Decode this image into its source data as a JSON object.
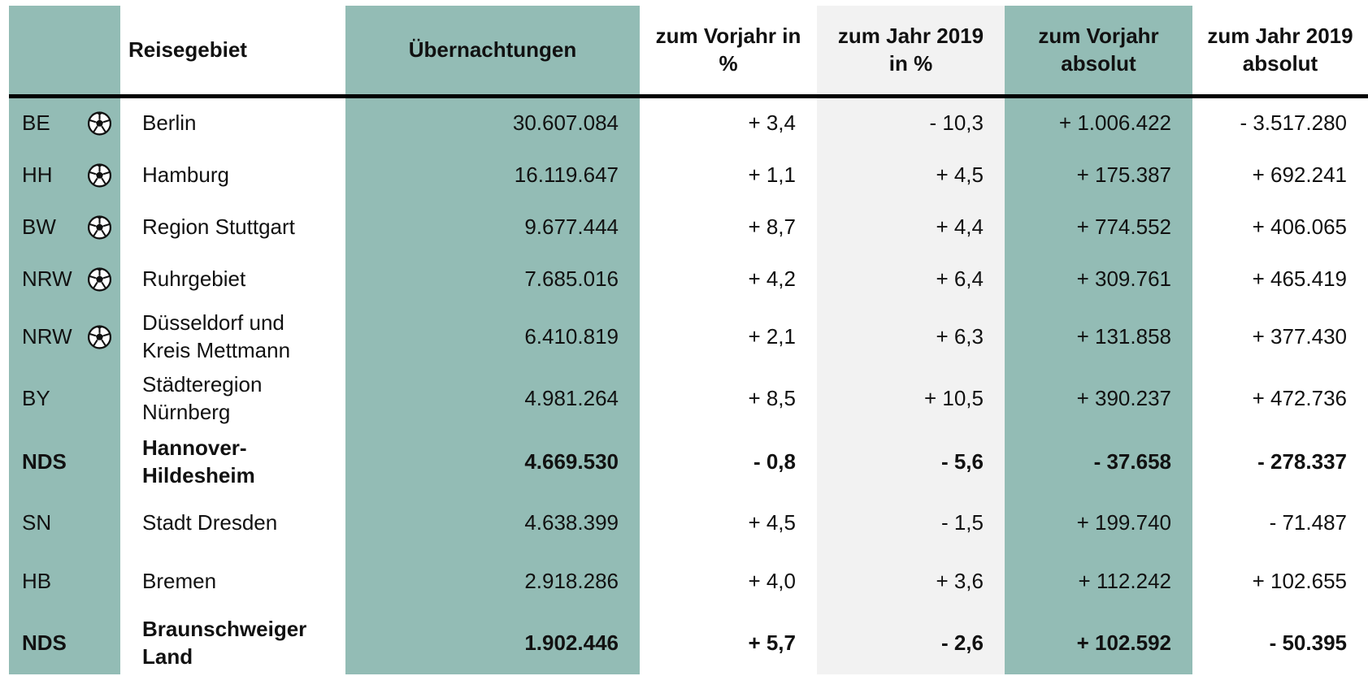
{
  "header": [
    "Reisegebiet",
    "Übernachtungen",
    "zum Vorjahr in %",
    "zum Jahr 2019 in %",
    "zum Vorjahr absolut",
    "zum Jahr 2019 absolut"
  ],
  "rows": [
    [
      "BE",
      "Berlin",
      "30.607.084",
      "+ 3,4",
      "- 10,3",
      "+ 1.006.422",
      "- 3.517.280"
    ],
    [
      "HH",
      "Hamburg",
      "16.119.647",
      "+ 1,1",
      "+ 4,5",
      "+ 175.387",
      "+ 692.241"
    ],
    [
      "BW",
      "Region Stuttgart",
      "9.677.444",
      "+ 8,7",
      "+ 4,4",
      "+ 774.552",
      "+ 406.065"
    ],
    [
      "NRW",
      "Ruhrgebiet",
      "7.685.016",
      "+ 4,2",
      "+ 6,4",
      "+ 309.761",
      "+ 465.419"
    ],
    [
      "NRW",
      "Düsseldorf und Kreis Mettmann",
      "6.410.819",
      "+ 2,1",
      "+ 6,3",
      "+ 131.858",
      "+ 377.430"
    ],
    [
      "BY",
      "Städteregion Nürnberg",
      "4.981.264",
      "+ 8,5",
      "+ 10,5",
      "+ 390.237",
      "+ 472.736"
    ],
    [
      "NDS",
      "Hannover-Hildesheim",
      "4.669.530",
      "- 0,8",
      "- 5,6",
      "- 37.658",
      "- 278.337"
    ],
    [
      "SN",
      "Stadt Dresden",
      "4.638.399",
      "+ 4,5",
      "- 1,5",
      "+ 199.740",
      "- 71.487"
    ],
    [
      "HB",
      "Bremen",
      "2.918.286",
      "+ 4,0",
      "+ 3,6",
      "+ 112.242",
      "+ 102.655"
    ],
    [
      "NDS",
      "Braunschweiger Land",
      "1.902.446",
      "+ 5,7",
      "- 2,6",
      "+ 102.592",
      "- 50.395"
    ]
  ]
}
